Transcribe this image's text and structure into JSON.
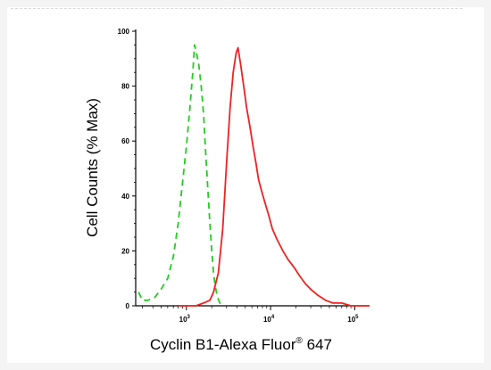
{
  "chart_data": {
    "type": "line",
    "title": "",
    "xlabel": "Cyclin B1-Alexa Fluor® 647",
    "xlabel_parts": {
      "main": "Cyclin B1-Alexa Fluor",
      "sup": "®",
      "end": " 647"
    },
    "ylabel": "Cell Counts (% Max)",
    "x_scale": "log",
    "xlim": [
      250,
      150000
    ],
    "ylim": [
      0,
      100
    ],
    "y_ticks": [
      "0",
      "20",
      "40",
      "60",
      "80",
      "100"
    ],
    "x_ticks": [
      {
        "value": 1000,
        "base": "10",
        "exp": "3"
      },
      {
        "value": 10000,
        "base": "10",
        "exp": "4"
      },
      {
        "value": 100000,
        "base": "10",
        "exp": "5"
      }
    ],
    "grid": false,
    "series": [
      {
        "style": "dashed",
        "color": "#22cc22",
        "x": [
          270,
          300,
          350,
          420,
          500,
          600,
          700,
          800,
          900,
          1000,
          1100,
          1200,
          1250,
          1300,
          1400,
          1500,
          1600,
          1700,
          1800,
          1900,
          2000,
          2100,
          2200,
          2350,
          2500,
          2700
        ],
        "y": [
          5,
          2,
          2,
          3,
          6,
          10,
          18,
          30,
          45,
          58,
          72,
          86,
          95,
          93,
          88,
          80,
          70,
          55,
          42,
          30,
          20,
          12,
          7,
          3,
          1,
          0
        ]
      },
      {
        "style": "solid",
        "color": "#ee2222",
        "x": [
          800,
          1000,
          1300,
          1600,
          1900,
          2100,
          2400,
          2700,
          3000,
          3300,
          3600,
          3900,
          4100,
          4400,
          4800,
          5200,
          5700,
          6200,
          6700,
          7200,
          7800,
          8500,
          9500,
          10500,
          12000,
          14000,
          16000,
          19000,
          22000,
          26000,
          30000,
          36000,
          45000,
          55000,
          70000,
          90000,
          120000,
          150000
        ],
        "y": [
          0,
          0,
          0,
          1,
          2,
          5,
          12,
          28,
          52,
          72,
          85,
          92,
          94,
          88,
          80,
          72,
          65,
          58,
          52,
          46,
          42,
          38,
          33,
          28,
          24,
          20,
          17,
          14,
          11,
          8,
          6,
          4,
          2,
          1,
          1,
          0,
          0,
          0
        ]
      }
    ]
  }
}
